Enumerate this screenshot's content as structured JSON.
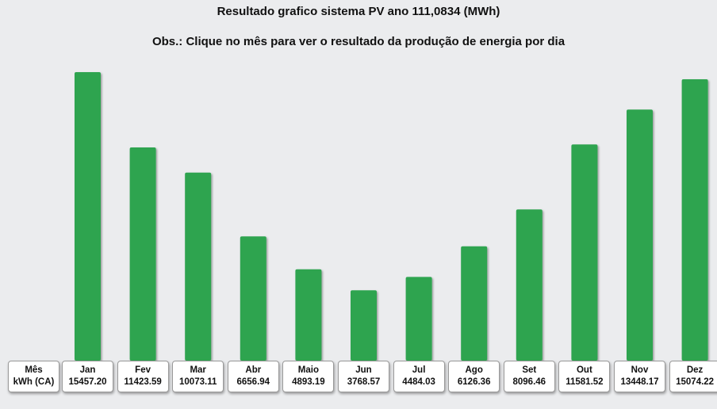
{
  "title": "Resultado grafico sistema PV ano 111,0834 (MWh)",
  "subtitle": "Obs.: Clique no mês para ver o resultado da produção de energia por dia",
  "bar_color": "#2ea44f",
  "table_header": {
    "row1": "Mês",
    "row2": "kWh (CA)"
  },
  "chart_data": {
    "type": "bar",
    "categories": [
      "Jan",
      "Fev",
      "Mar",
      "Abr",
      "Maio",
      "Jun",
      "Jul",
      "Ago",
      "Set",
      "Out",
      "Nov",
      "Dez"
    ],
    "values": [
      15457.2,
      11423.59,
      10073.11,
      6656.94,
      4893.19,
      3768.57,
      4484.03,
      6126.36,
      8096.46,
      11581.52,
      13448.17,
      15074.22
    ],
    "value_labels": [
      "15457.20",
      "11423.59",
      "10073.11",
      "6656.94",
      "4893.19",
      "3768.57",
      "4484.03",
      "6126.36",
      "8096.46",
      "11581.52",
      "13448.17",
      "15074.22"
    ],
    "ylim": [
      0,
      15457.2
    ],
    "grid": false,
    "legend": false
  }
}
